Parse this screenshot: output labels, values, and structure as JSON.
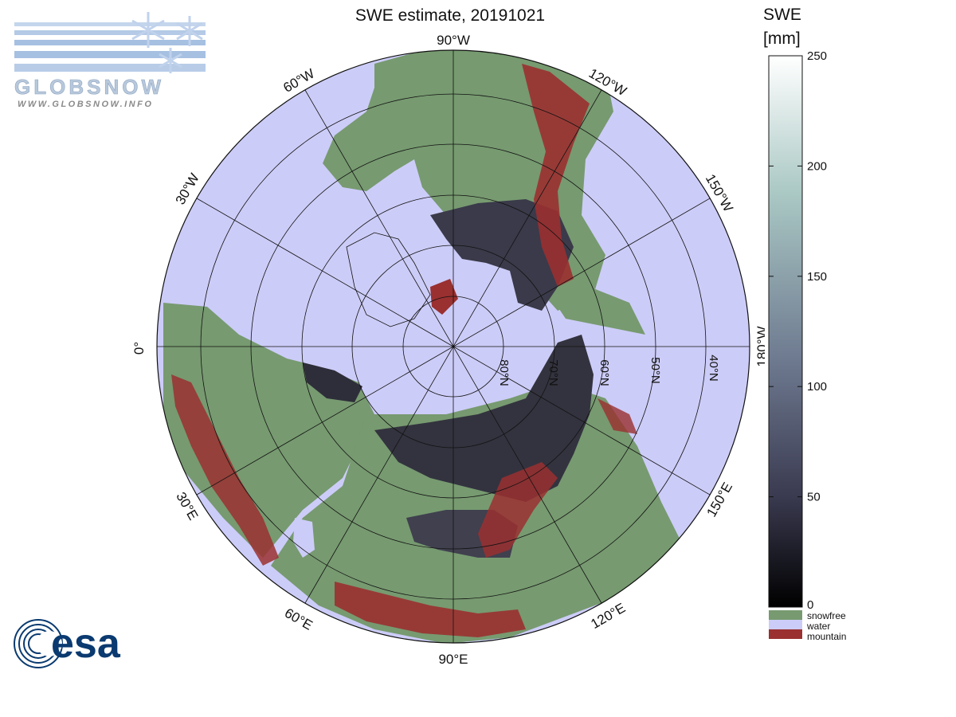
{
  "title": "SWE estimate, 20191021",
  "map": {
    "longitude_labels": [
      "90°W",
      "120°W",
      "150°W",
      "180°W",
      "150°E",
      "120°E",
      "90°E",
      "60°E",
      "30°E",
      "0°",
      "30°W",
      "60°W"
    ],
    "latitude_labels": [
      "80°N",
      "70°N",
      "60°N",
      "50°N",
      "40°N"
    ],
    "colors": {
      "land_snowfree": "#779a70",
      "water": "#ccccf8",
      "mountain": "#9a3030",
      "snow_dark": "#2a2a36",
      "snow_mid": "#4b4b5e"
    }
  },
  "colorbar": {
    "title_line1": "SWE",
    "title_line2": "[mm]",
    "ticks": [
      "250",
      "200",
      "150",
      "100",
      "50",
      "0"
    ],
    "tick_values": [
      250,
      200,
      150,
      100,
      50,
      0
    ],
    "range": [
      0,
      250
    ],
    "legend": [
      {
        "label": "snowfree",
        "color": "#779a70"
      },
      {
        "label": "water",
        "color": "#ccccf8"
      },
      {
        "label": "mountain",
        "color": "#9a3030"
      }
    ]
  },
  "logos": {
    "globsnow_text": "GLOBSNOW",
    "globsnow_url": "WWW.GLOBSNOW.INFO",
    "esa_text": "esa"
  }
}
